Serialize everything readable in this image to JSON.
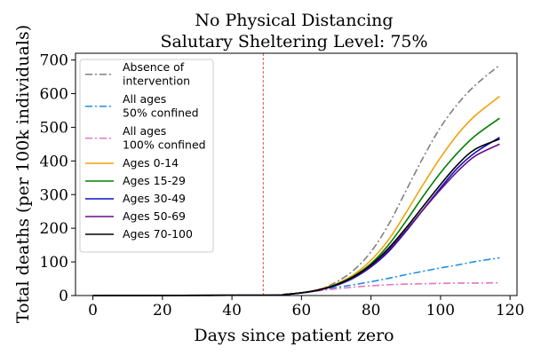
{
  "chart_data": {
    "type": "line",
    "title": "No Physical Distancing",
    "subtitle": "Salutary Sheltering Level: 75%",
    "xlabel": "Days since patient zero",
    "ylabel": "Total deaths (per 100k individuals)",
    "xlim": [
      -5,
      122
    ],
    "ylim": [
      0,
      720
    ],
    "xticks": [
      0,
      20,
      40,
      60,
      80,
      100,
      120
    ],
    "yticks": [
      0,
      100,
      200,
      300,
      400,
      500,
      600,
      700
    ],
    "xtick_labels": [
      "0",
      "20",
      "40",
      "60",
      "80",
      "100",
      "120"
    ],
    "ytick_labels": [
      "0",
      "100",
      "200",
      "300",
      "400",
      "500",
      "600",
      "700"
    ],
    "grid": false,
    "legend_position": "top-left",
    "vline": {
      "x": 49,
      "color": "#d9534f"
    },
    "series": [
      {
        "name": "Absence of intervention",
        "legend_lines": [
          "Absence of",
          "intervention"
        ],
        "color": "#808080",
        "dash": "dashdot",
        "x": [
          0,
          50,
          55,
          60,
          65,
          70,
          75,
          80,
          85,
          90,
          95,
          100,
          105,
          110,
          117
        ],
        "y": [
          0,
          1,
          3,
          8,
          18,
          40,
          75,
          130,
          210,
          310,
          410,
          500,
          570,
          625,
          685
        ]
      },
      {
        "name": "All ages 50% confined",
        "legend_lines": [
          "All ages",
          "50% confined"
        ],
        "color": "#1f8ee6",
        "dash": "dashdot",
        "x": [
          0,
          50,
          55,
          60,
          65,
          70,
          75,
          80,
          85,
          90,
          95,
          100,
          105,
          110,
          117
        ],
        "y": [
          0,
          1,
          3,
          8,
          15,
          24,
          32,
          41,
          51,
          62,
          72,
          82,
          91,
          101,
          112
        ]
      },
      {
        "name": "All ages 100% confined",
        "legend_lines": [
          "All ages",
          "100% confined"
        ],
        "color": "#e377c2",
        "dash": "dashdot",
        "x": [
          0,
          50,
          55,
          60,
          65,
          70,
          75,
          80,
          85,
          90,
          95,
          100,
          105,
          110,
          117
        ],
        "y": [
          0,
          1,
          3,
          8,
          14,
          20,
          25,
          29,
          32,
          34,
          35,
          36,
          37,
          37,
          38
        ]
      },
      {
        "name": "Ages 0-14",
        "legend_lines": [
          "Ages 0-14"
        ],
        "color": "#f0a30a",
        "dash": "solid",
        "x": [
          0,
          50,
          55,
          60,
          65,
          70,
          75,
          80,
          85,
          90,
          95,
          100,
          105,
          110,
          117
        ],
        "y": [
          0,
          1,
          3,
          8,
          18,
          35,
          62,
          105,
          165,
          245,
          330,
          410,
          480,
          535,
          592
        ]
      },
      {
        "name": "Ages 15-29",
        "legend_lines": [
          "Ages 15-29"
        ],
        "color": "#008000",
        "dash": "solid",
        "x": [
          0,
          50,
          55,
          60,
          65,
          70,
          75,
          80,
          85,
          90,
          95,
          100,
          105,
          110,
          117
        ],
        "y": [
          0,
          1,
          3,
          8,
          17,
          33,
          58,
          95,
          150,
          220,
          295,
          365,
          425,
          475,
          527
        ]
      },
      {
        "name": "Ages 30-49",
        "legend_lines": [
          "Ages 30-49"
        ],
        "color": "#1010c8",
        "dash": "solid",
        "x": [
          0,
          50,
          55,
          60,
          65,
          70,
          75,
          80,
          85,
          90,
          95,
          100,
          105,
          110,
          117
        ],
        "y": [
          0,
          1,
          3,
          8,
          16,
          30,
          52,
          85,
          130,
          190,
          255,
          320,
          380,
          425,
          470
        ]
      },
      {
        "name": "Ages 50-69",
        "legend_lines": [
          "Ages 50-69"
        ],
        "color": "#6a0d83",
        "dash": "solid",
        "x": [
          0,
          50,
          55,
          60,
          65,
          70,
          75,
          80,
          85,
          90,
          95,
          100,
          105,
          110,
          117
        ],
        "y": [
          0,
          1,
          3,
          8,
          16,
          31,
          54,
          88,
          135,
          193,
          255,
          315,
          370,
          415,
          450
        ]
      },
      {
        "name": "Ages 70-100",
        "legend_lines": [
          "Ages 70-100"
        ],
        "color": "#000000",
        "dash": "solid",
        "x": [
          0,
          50,
          55,
          60,
          65,
          70,
          75,
          80,
          85,
          90,
          95,
          100,
          105,
          110,
          117
        ],
        "y": [
          0,
          1,
          3,
          8,
          17,
          32,
          56,
          91,
          140,
          200,
          265,
          330,
          390,
          435,
          465
        ]
      }
    ]
  }
}
